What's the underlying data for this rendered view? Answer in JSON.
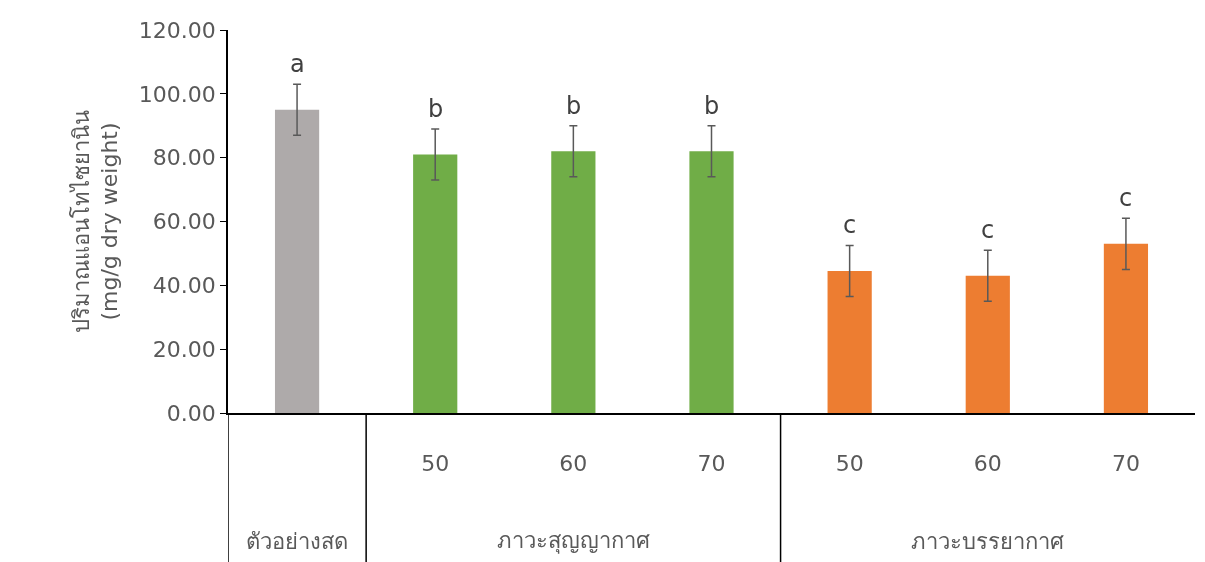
{
  "chart_data": {
    "type": "bar",
    "ylabel": "ปริมาณแอนโทไซยานิน\n(mg/g dry weight)",
    "categories": [
      null,
      "50",
      "60",
      "70",
      "50",
      "60",
      "70"
    ],
    "values": [
      95,
      81,
      82,
      82,
      44.5,
      43,
      53
    ],
    "errors": [
      8,
      8,
      8,
      8,
      8,
      8,
      8
    ],
    "colors": [
      "#aeaaaa",
      "#70ad47",
      "#70ad47",
      "#70ad47",
      "#ed7d31",
      "#ed7d31",
      "#ed7d31"
    ],
    "ylim": [
      0,
      120
    ],
    "yticks": [
      {
        "value": 0,
        "label": "0.00"
      },
      {
        "value": 20,
        "label": "20.00"
      },
      {
        "value": 40,
        "label": "40.00"
      },
      {
        "value": 60,
        "label": "60.00"
      },
      {
        "value": 80,
        "label": "80.00"
      },
      {
        "value": 100,
        "label": "100.00"
      },
      {
        "value": 120,
        "label": "120.00"
      }
    ],
    "legend": false,
    "annotations": [
      "ตัวอย่างสด",
      "ภาวะสุญญากาศ",
      "ภาวะบรรยากาศ",
      {
        "text": "a",
        "y": 103
      },
      {
        "text": "b",
        "y": 89
      },
      {
        "text": "b",
        "y": 90
      },
      {
        "text": "b",
        "y": 90
      },
      {
        "text": "c",
        "y": 52.5
      },
      {
        "text": "c",
        "y": 51
      },
      {
        "text": "c",
        "y": 61
      }
    ]
  }
}
